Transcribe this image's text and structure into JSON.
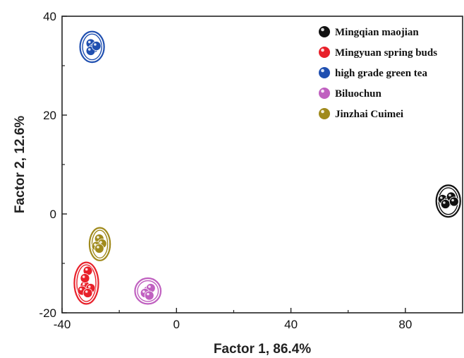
{
  "chart_data": {
    "type": "scatter",
    "xlabel": "Factor 1, 86.4%",
    "ylabel": "Factor 2, 12.6%",
    "xlim": [
      -40,
      100
    ],
    "ylim": [
      -20,
      40
    ],
    "xticks": [
      -40,
      0,
      40,
      80
    ],
    "yticks": [
      -20,
      0,
      20,
      40
    ],
    "legend_position": "top-right",
    "series": [
      {
        "name": "Mingqian maojian",
        "color": "#111111",
        "points": [
          [
            93,
            3
          ],
          [
            95,
            2.5
          ],
          [
            96,
            3.5
          ],
          [
            94,
            2
          ],
          [
            97,
            2.5
          ]
        ],
        "ellipse": {
          "cx": 95,
          "cy": 2.6,
          "rx": 4.2,
          "ry": 3.2
        }
      },
      {
        "name": "Mingyuan spring buds",
        "color": "#e8202a",
        "points": [
          [
            -31,
            -11.5
          ],
          [
            -32,
            -14.5
          ],
          [
            -30,
            -15
          ],
          [
            -33,
            -15.5
          ],
          [
            -31,
            -16
          ],
          [
            -32,
            -13
          ]
        ],
        "ellipse": {
          "cx": -31.5,
          "cy": -14,
          "rx": 4.2,
          "ry": 4.2
        }
      },
      {
        "name": "high grade green tea",
        "color": "#1f4fb0",
        "points": [
          [
            -30,
            34.5
          ],
          [
            -29,
            33.5
          ],
          [
            -30,
            33
          ],
          [
            -28,
            34
          ]
        ],
        "ellipse": {
          "cx": -29.5,
          "cy": 33.8,
          "rx": 4.2,
          "ry": 3.1
        }
      },
      {
        "name": "Biluochun",
        "color": "#c060c0",
        "points": [
          [
            -10,
            -15.5
          ],
          [
            -9,
            -15
          ],
          [
            -11,
            -16
          ],
          [
            -9.5,
            -16.5
          ]
        ],
        "ellipse": {
          "cx": -10,
          "cy": -15.6,
          "rx": 4.5,
          "ry": 2.6
        }
      },
      {
        "name": "Jinzhai Cuimei",
        "color": "#a08a1c",
        "points": [
          [
            -27,
            -5
          ],
          [
            -26,
            -6
          ],
          [
            -28,
            -6.5
          ],
          [
            -27,
            -7
          ]
        ],
        "ellipse": {
          "cx": -26.8,
          "cy": -6.1,
          "rx": 3.6,
          "ry": 3.3
        }
      }
    ]
  }
}
